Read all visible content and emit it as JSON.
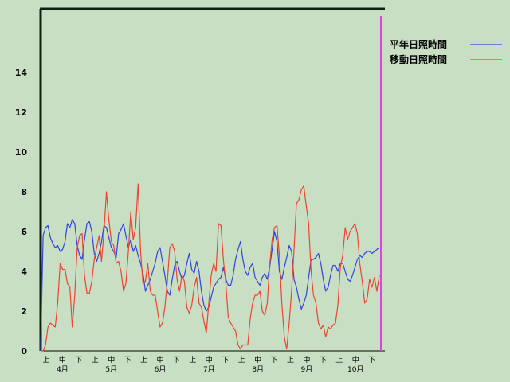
{
  "chart_data": {
    "type": "line",
    "title": "",
    "xlabel": "",
    "ylabel": "",
    "ylim": [
      0,
      17
    ],
    "yticks": [
      0,
      2,
      4,
      6,
      8,
      10,
      12,
      14
    ],
    "period_labels": [
      "上",
      "中",
      "下"
    ],
    "month_labels": [
      "4月",
      "5月",
      "6月",
      "7月",
      "8月",
      "9月",
      "10月"
    ],
    "legend_position": "top-right",
    "grid": false,
    "series": [
      {
        "name": "平年日照時間",
        "color": "#3344dd",
        "values": [
          0.0,
          5.8,
          6.2,
          6.3,
          5.7,
          5.4,
          5.2,
          5.3,
          5.0,
          5.1,
          5.5,
          6.4,
          6.2,
          6.6,
          6.4,
          5.3,
          4.8,
          4.6,
          5.6,
          6.4,
          6.5,
          6.0,
          4.9,
          4.5,
          4.9,
          5.5,
          6.3,
          6.2,
          5.7,
          5.2,
          5.0,
          4.7,
          5.9,
          6.1,
          6.4,
          5.8,
          5.2,
          5.6,
          5.0,
          5.3,
          4.8,
          4.4,
          3.9,
          3.0,
          3.3,
          3.6,
          4.0,
          4.4,
          5.0,
          5.2,
          4.5,
          3.8,
          3.0,
          2.8,
          3.6,
          4.3,
          4.5,
          4.0,
          3.6,
          3.8,
          4.4,
          4.9,
          4.1,
          3.9,
          4.5,
          4.0,
          3.0,
          2.3,
          2.0,
          2.2,
          2.7,
          3.2,
          3.4,
          3.6,
          3.7,
          4.2,
          3.6,
          3.3,
          3.3,
          3.8,
          4.6,
          5.1,
          5.5,
          4.6,
          4.0,
          3.8,
          4.2,
          4.4,
          3.7,
          3.5,
          3.3,
          3.7,
          3.9,
          3.6,
          4.2,
          5.1,
          6.0,
          5.5,
          4.0,
          3.6,
          4.2,
          4.7,
          5.3,
          5.0,
          3.6,
          3.2,
          2.6,
          2.1,
          2.4,
          2.8,
          3.7,
          4.6,
          4.6,
          4.7,
          4.9,
          4.4,
          3.6,
          3.0,
          3.2,
          3.8,
          4.3,
          4.3,
          4.0,
          4.4,
          4.4,
          4.0,
          3.6,
          3.5,
          3.8,
          4.2,
          4.6,
          4.8,
          4.7,
          4.9,
          5.0,
          5.0,
          4.9,
          5.0,
          5.1,
          5.2
        ]
      },
      {
        "name": "移動日照時間",
        "color": "#ee4433",
        "values": [
          0.0,
          0.0,
          0.3,
          1.2,
          1.4,
          1.3,
          1.2,
          2.4,
          4.4,
          4.1,
          4.1,
          3.4,
          3.2,
          1.2,
          2.8,
          5.2,
          5.8,
          5.9,
          3.8,
          2.9,
          2.9,
          3.5,
          4.6,
          5.2,
          5.8,
          4.5,
          6.0,
          8.0,
          6.6,
          5.5,
          5.3,
          4.4,
          4.5,
          4.0,
          3.0,
          3.4,
          5.0,
          7.0,
          5.6,
          6.2,
          8.4,
          5.0,
          3.4,
          3.5,
          4.4,
          3.0,
          2.8,
          2.8,
          2.0,
          1.2,
          1.4,
          2.2,
          3.5,
          5.2,
          5.4,
          5.0,
          3.6,
          3.0,
          3.8,
          3.5,
          2.2,
          1.9,
          2.3,
          3.2,
          3.7,
          2.4,
          2.2,
          1.5,
          0.9,
          2.4,
          3.8,
          4.4,
          4.0,
          6.4,
          6.3,
          4.6,
          3.4,
          1.7,
          1.4,
          1.2,
          1.0,
          0.3,
          0.1,
          0.3,
          0.3,
          0.3,
          1.6,
          2.4,
          2.8,
          2.8,
          3.0,
          2.0,
          1.8,
          2.4,
          4.3,
          5.6,
          6.2,
          6.3,
          4.8,
          2.4,
          0.7,
          0.1,
          1.4,
          3.0,
          5.1,
          7.4,
          7.6,
          8.1,
          8.3,
          7.3,
          6.4,
          4.0,
          2.8,
          2.4,
          1.4,
          1.1,
          1.3,
          0.7,
          1.2,
          1.1,
          1.3,
          1.4,
          2.3,
          4.2,
          4.8,
          6.2,
          5.6,
          6.0,
          6.2,
          6.4,
          5.9,
          4.4,
          3.5,
          2.4,
          2.6,
          3.6,
          3.2,
          3.7,
          3.0,
          3.8
        ]
      }
    ]
  }
}
